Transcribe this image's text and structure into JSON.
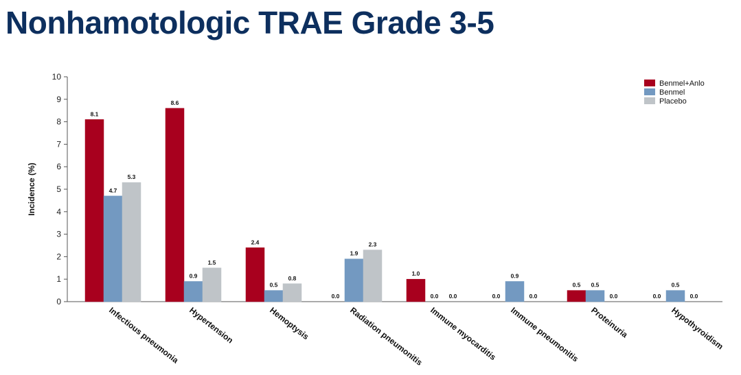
{
  "page": {
    "title": "Nonhamotologic TRAE Grade 3-5"
  },
  "chart_data": {
    "type": "bar",
    "categories": [
      "Infectious pneumonia",
      "Hypertension",
      "Hemoptysis",
      "Radiation pneumonitis",
      "Immune myocarditis",
      "Immune pneumonitis",
      "Proteinuria",
      "Hypothyroidism"
    ],
    "series": [
      {
        "name": "Benmel+Anlo",
        "color": "#a8001e",
        "values": [
          8.1,
          8.6,
          2.4,
          0.0,
          1.0,
          0.0,
          0.5,
          0.0
        ],
        "labels": [
          "8.1",
          "8.6",
          "2.4",
          "0.0",
          "1.0",
          "0.0",
          "0.5",
          "0.0"
        ]
      },
      {
        "name": "Benmel",
        "color": "#7399c1",
        "values": [
          4.7,
          0.9,
          0.5,
          1.9,
          0.0,
          0.9,
          0.5,
          0.5
        ],
        "labels": [
          "4.7",
          "0.9",
          "0.5",
          "1.9",
          "0.0",
          "0.9",
          "0.5",
          "0.5"
        ]
      },
      {
        "name": "Placebo",
        "color": "#bfc4c8",
        "values": [
          5.3,
          1.5,
          0.8,
          2.3,
          0.0,
          0.0,
          0.0,
          0.0
        ],
        "labels": [
          "5.3",
          "1.5",
          "0.8",
          "2.3",
          "0.0",
          "0.0",
          "0.0",
          "0.0"
        ]
      }
    ],
    "yticks": [
      "0",
      "1",
      "2",
      "3",
      "4",
      "5",
      "6",
      "7",
      "8",
      "9",
      "10"
    ],
    "title": "",
    "xlabel": "",
    "ylabel": "Incidence (%)",
    "ylim": [
      0,
      10
    ],
    "grid": false,
    "legend_position": "top-right"
  }
}
